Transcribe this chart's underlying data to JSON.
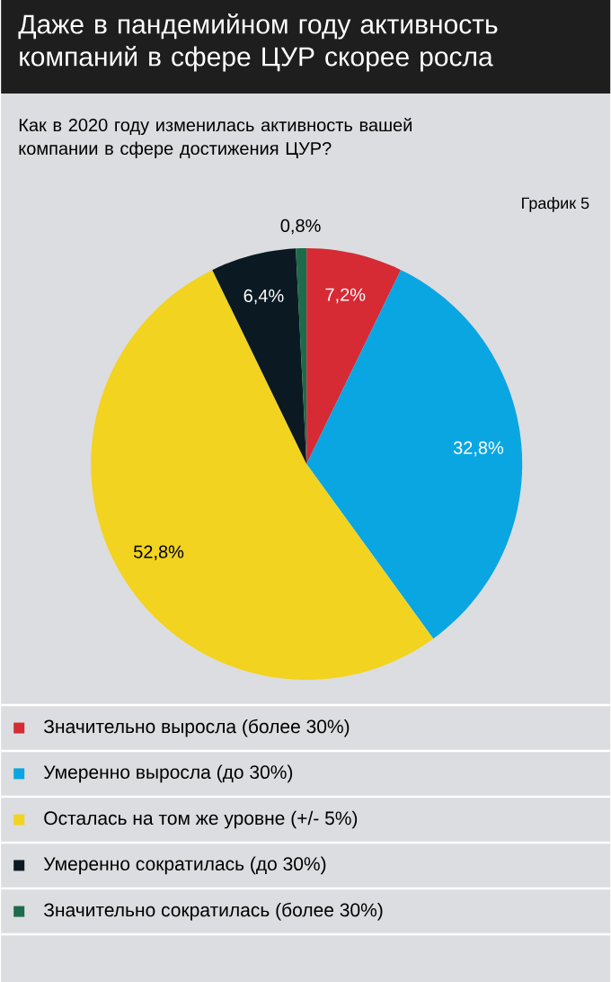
{
  "chart_data": {
    "type": "pie",
    "title": "Даже в пандемийном году активность компаний в сфере ЦУР скорее росла",
    "subtitle": "Как в 2020 году изменилась активность вашей компании в сфере достижения ЦУР?",
    "annotations": [
      "График 5"
    ],
    "categories": [
      "Значительно выросла (более 30%)",
      "Умеренно выросла (до 30%)",
      "Осталась на том же уровне (+/- 5%)",
      "Умеренно сократилась (до 30%)",
      "Значительно сократилась (более 30%)"
    ],
    "values": [
      7.2,
      32.8,
      52.8,
      6.4,
      0.8
    ],
    "value_labels": [
      "7,2%",
      "32,8%",
      "52,8%",
      "6,4%",
      "0,8%"
    ],
    "colors": [
      "#d62b35",
      "#0aa6e2",
      "#f2d31f",
      "#0b1a22",
      "#1d6b4a"
    ],
    "legend": "bottom"
  }
}
